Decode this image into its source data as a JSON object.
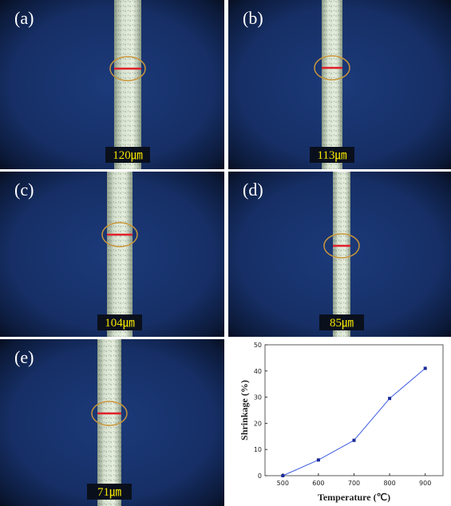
{
  "panels": [
    {
      "label": "(a)",
      "width": "120㎛"
    },
    {
      "label": "(b)",
      "width": "113㎛"
    },
    {
      "label": "(c)",
      "width": "104㎛"
    },
    {
      "label": "(d)",
      "width": "85㎛"
    },
    {
      "label": "(e)",
      "width": "71㎛"
    }
  ],
  "chart_data": {
    "type": "line",
    "x": [
      500,
      600,
      700,
      800,
      900
    ],
    "values": [
      0,
      6,
      13.5,
      29.5,
      41
    ],
    "color": "#3f5fe0",
    "marker_color": "#1a2a9a",
    "xlim": [
      450,
      950
    ],
    "xticks": [
      500,
      600,
      700,
      800,
      900
    ],
    "ylim": [
      0,
      50
    ],
    "yticks": [
      0,
      10,
      20,
      30,
      40,
      50
    ],
    "xlabel": "Temperature (℃)",
    "ylabel": "Shrinkage (%)"
  }
}
